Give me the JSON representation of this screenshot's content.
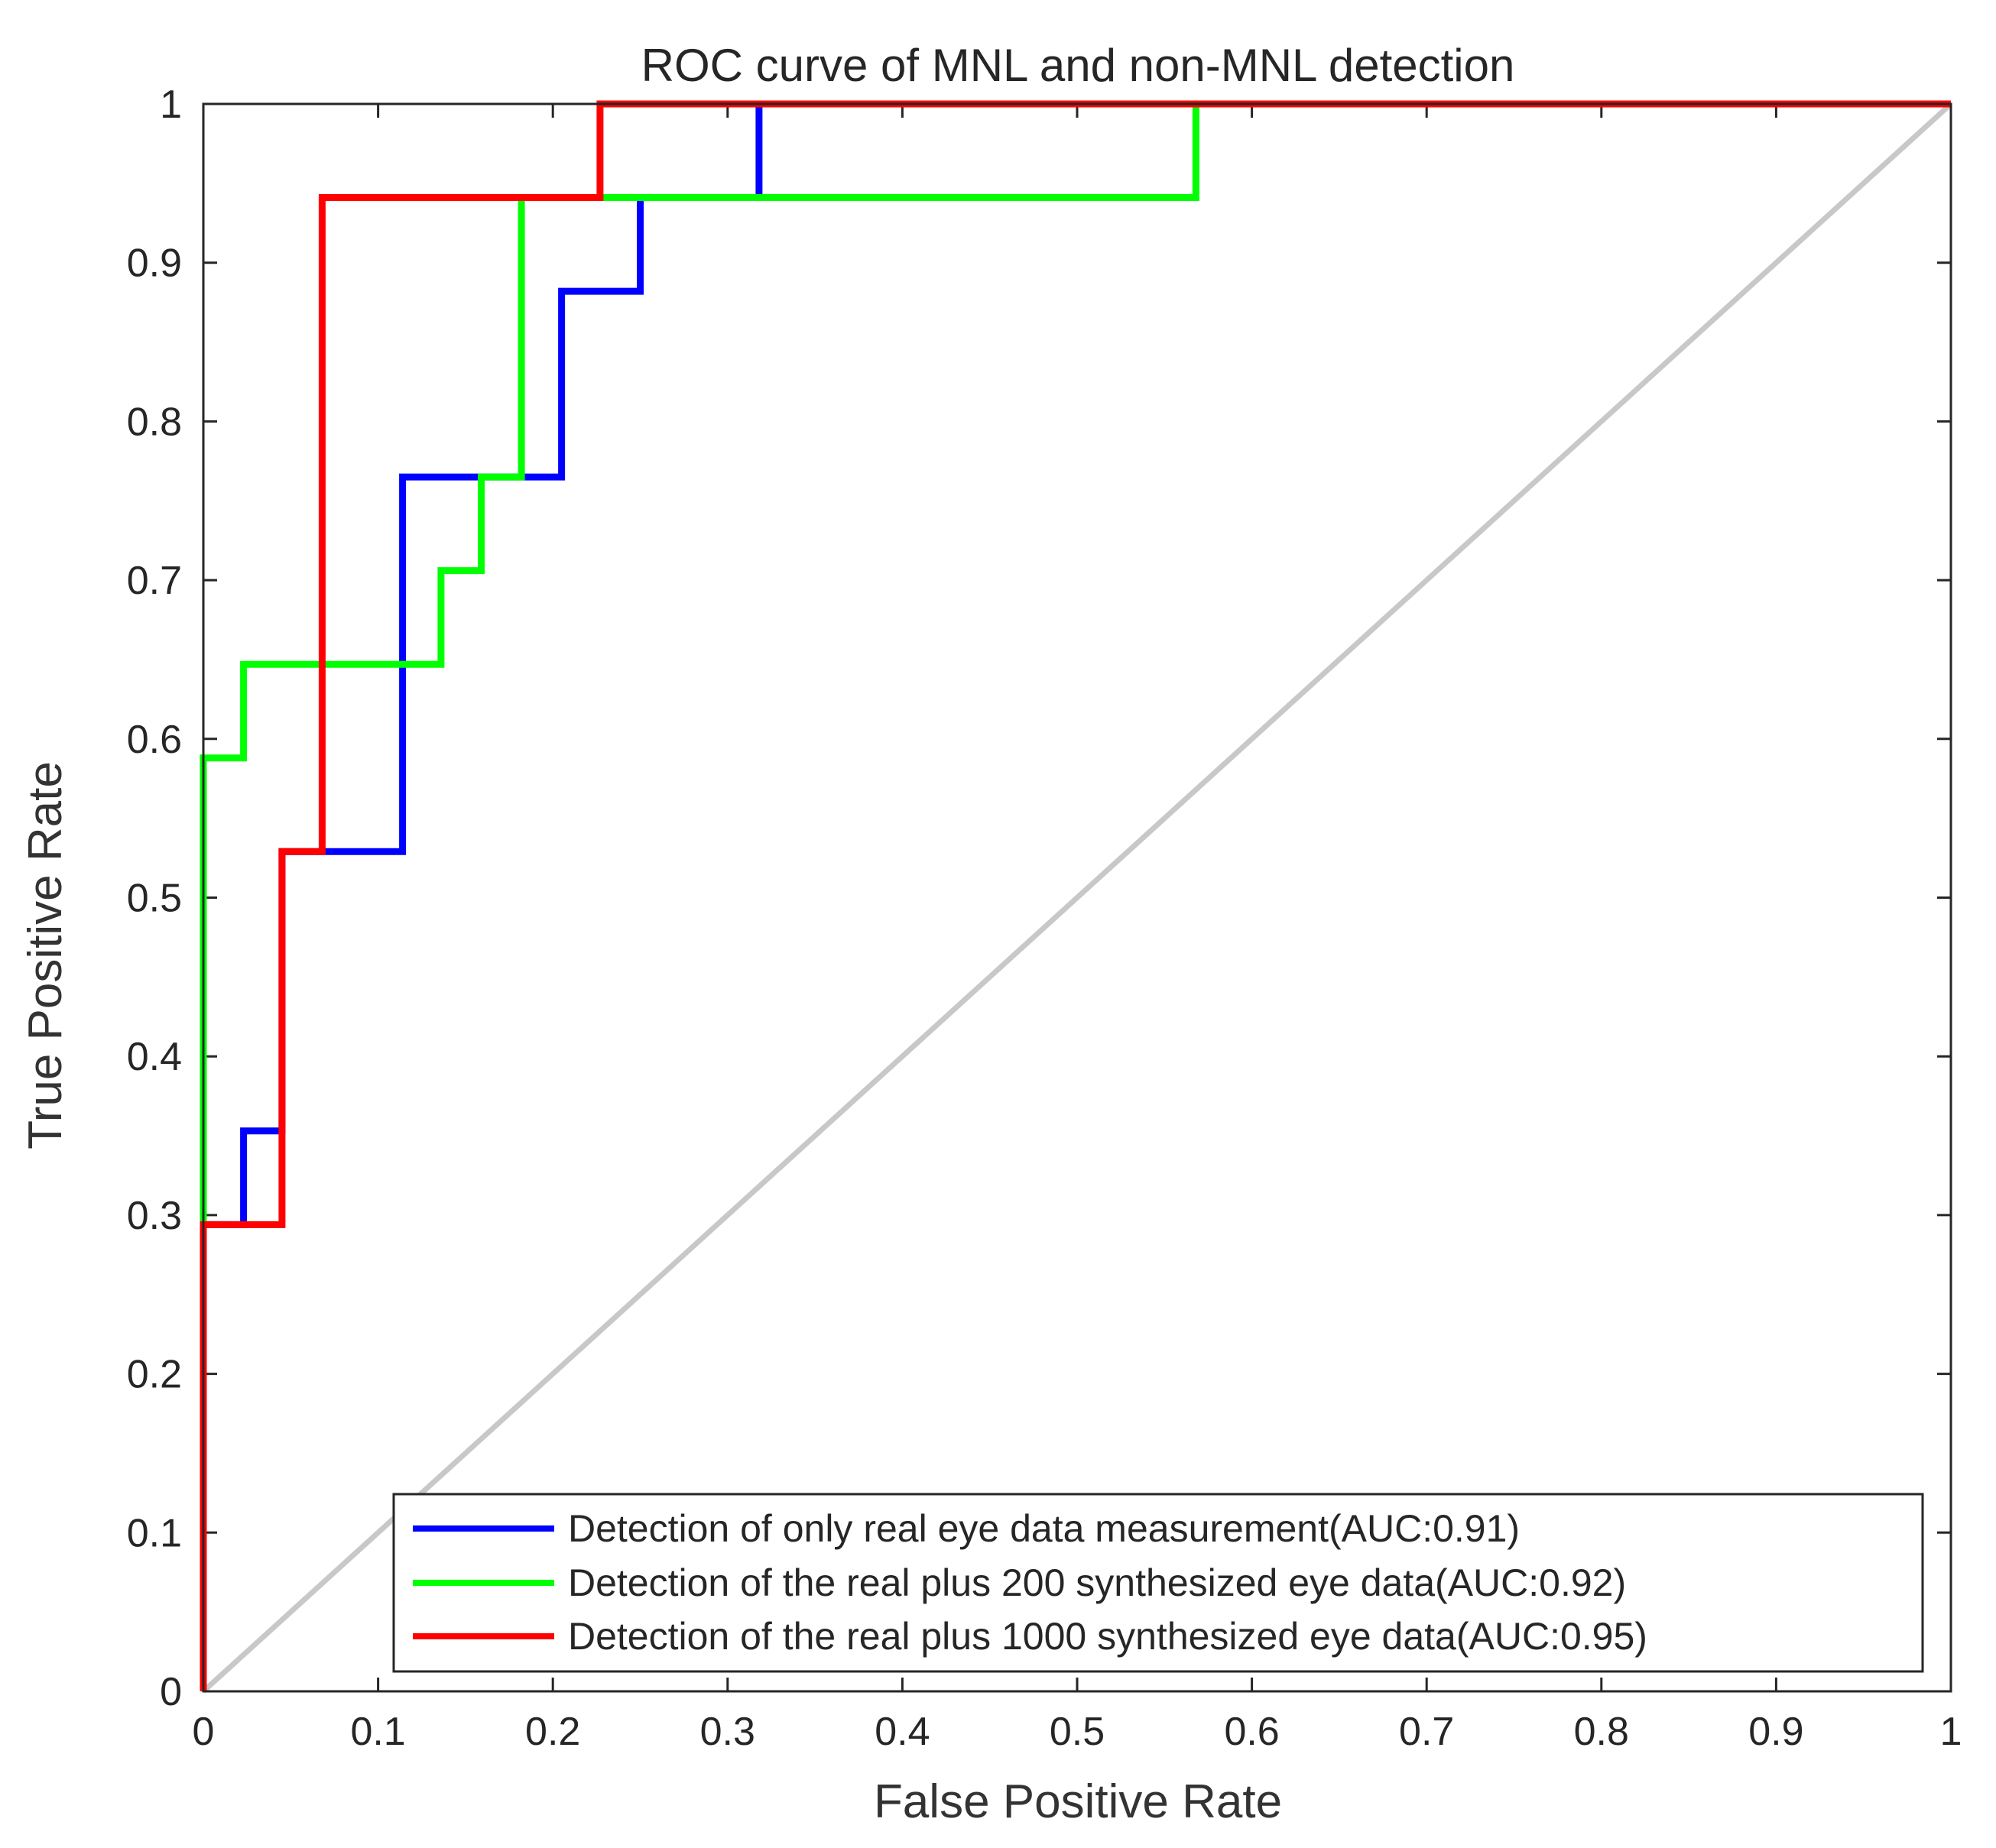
{
  "chart_data": {
    "type": "line",
    "title": "ROC curve of  MNL and non-MNL detection",
    "xlabel": "False Positive Rate",
    "ylabel": "True Positive Rate",
    "xlim": [
      0,
      1
    ],
    "ylim": [
      0,
      1
    ],
    "grid": false,
    "legend_position": "bottom-right",
    "x_ticks": [
      0,
      0.1,
      0.2,
      0.3,
      0.4,
      0.5,
      0.6,
      0.7,
      0.8,
      0.9,
      1
    ],
    "x_tick_labels": [
      "0",
      "0.1",
      "0.2",
      "0.3",
      "0.4",
      "0.5",
      "0.6",
      "0.7",
      "0.8",
      "0.9",
      "1"
    ],
    "y_ticks": [
      0,
      0.1,
      0.2,
      0.3,
      0.4,
      0.5,
      0.6,
      0.7,
      0.8,
      0.9,
      1
    ],
    "y_tick_labels": [
      "0",
      "0.1",
      "0.2",
      "0.3",
      "0.4",
      "0.5",
      "0.6",
      "0.7",
      "0.8",
      "0.9",
      "1"
    ],
    "reference_line": {
      "name": "chance",
      "color": "#c8c8c8",
      "x": [
        0,
        1
      ],
      "y": [
        0,
        1
      ]
    },
    "series": [
      {
        "name": "Detection of only real eye data measurement(AUC:0.91)",
        "color": "#0000ff",
        "x": [
          0,
          0,
          0.023,
          0.023,
          0.045,
          0.045,
          0.068,
          0.068,
          0.114,
          0.114,
          0.205,
          0.205,
          0.25,
          0.25,
          0.318,
          0.318,
          1
        ],
        "y": [
          0,
          0.294,
          0.294,
          0.353,
          0.353,
          0.529,
          0.529,
          0.529,
          0.529,
          0.765,
          0.765,
          0.882,
          0.882,
          0.941,
          0.941,
          1,
          1
        ]
      },
      {
        "name": "Detection of  the real plus 200 synthesized eye data(AUC:0.92)",
        "color": "#00ff00",
        "x": [
          0,
          0,
          0.023,
          0.023,
          0.136,
          0.136,
          0.159,
          0.159,
          0.182,
          0.182,
          0.568,
          0.568,
          1
        ],
        "y": [
          0,
          0.588,
          0.588,
          0.647,
          0.647,
          0.706,
          0.706,
          0.765,
          0.765,
          0.941,
          0.941,
          1,
          1
        ]
      },
      {
        "name": "Detection of  the real plus 1000 synthesized eye data(AUC:0.95)",
        "color": "#ff0000",
        "x": [
          0,
          0,
          0.045,
          0.045,
          0.068,
          0.068,
          0.227,
          0.227,
          1
        ],
        "y": [
          0,
          0.294,
          0.294,
          0.529,
          0.529,
          0.941,
          0.941,
          1,
          1
        ]
      }
    ]
  }
}
